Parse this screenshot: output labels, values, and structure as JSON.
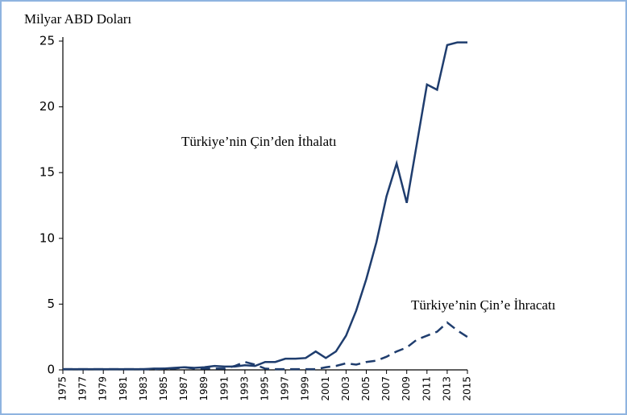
{
  "chart_data": {
    "type": "line",
    "y_label": "Milyar ABD Doları",
    "x": [
      1975,
      1976,
      1977,
      1978,
      1979,
      1980,
      1981,
      1982,
      1983,
      1984,
      1985,
      1986,
      1987,
      1988,
      1989,
      1990,
      1991,
      1992,
      1993,
      1994,
      1995,
      1996,
      1997,
      1998,
      1999,
      2000,
      2001,
      2002,
      2003,
      2004,
      2005,
      2006,
      2007,
      2008,
      2009,
      2010,
      2011,
      2012,
      2013,
      2014,
      2015
    ],
    "xlim": [
      1975,
      2015
    ],
    "xticks": [
      1975,
      1977,
      1979,
      1981,
      1983,
      1985,
      1987,
      1989,
      1991,
      1993,
      1995,
      1997,
      1999,
      2001,
      2003,
      2005,
      2007,
      2009,
      2011,
      2013,
      2015
    ],
    "ylim": [
      0,
      25
    ],
    "yticks": [
      0,
      5,
      10,
      15,
      20,
      25
    ],
    "series": [
      {
        "name": "Türkiye’nin Çin’den İthalatı",
        "color": "#1f3d6e",
        "dash": "solid",
        "values": [
          0.05,
          0.05,
          0.05,
          0.05,
          0.05,
          0.05,
          0.05,
          0.05,
          0.05,
          0.1,
          0.1,
          0.15,
          0.2,
          0.15,
          0.2,
          0.3,
          0.25,
          0.25,
          0.35,
          0.3,
          0.6,
          0.6,
          0.85,
          0.85,
          0.9,
          1.4,
          0.9,
          1.4,
          2.6,
          4.5,
          6.9,
          9.7,
          13.2,
          15.7,
          12.7,
          17.2,
          21.7,
          21.3,
          24.7,
          24.9,
          24.9
        ]
      },
      {
        "name": "Türkiye’nin Çin’e İhracatı",
        "color": "#1f3d6e",
        "dash": "dashed",
        "values": [
          0.05,
          0.05,
          0.05,
          0.05,
          0.05,
          0.05,
          0.05,
          0.05,
          0.05,
          0.05,
          0.1,
          0.1,
          0.2,
          0.1,
          0.1,
          0.1,
          0.1,
          0.3,
          0.6,
          0.4,
          0.1,
          0.05,
          0.05,
          0.05,
          0.05,
          0.05,
          0.2,
          0.3,
          0.5,
          0.4,
          0.6,
          0.7,
          1.0,
          1.4,
          1.7,
          2.3,
          2.6,
          2.9,
          3.6,
          3.0,
          2.5
        ]
      }
    ]
  }
}
